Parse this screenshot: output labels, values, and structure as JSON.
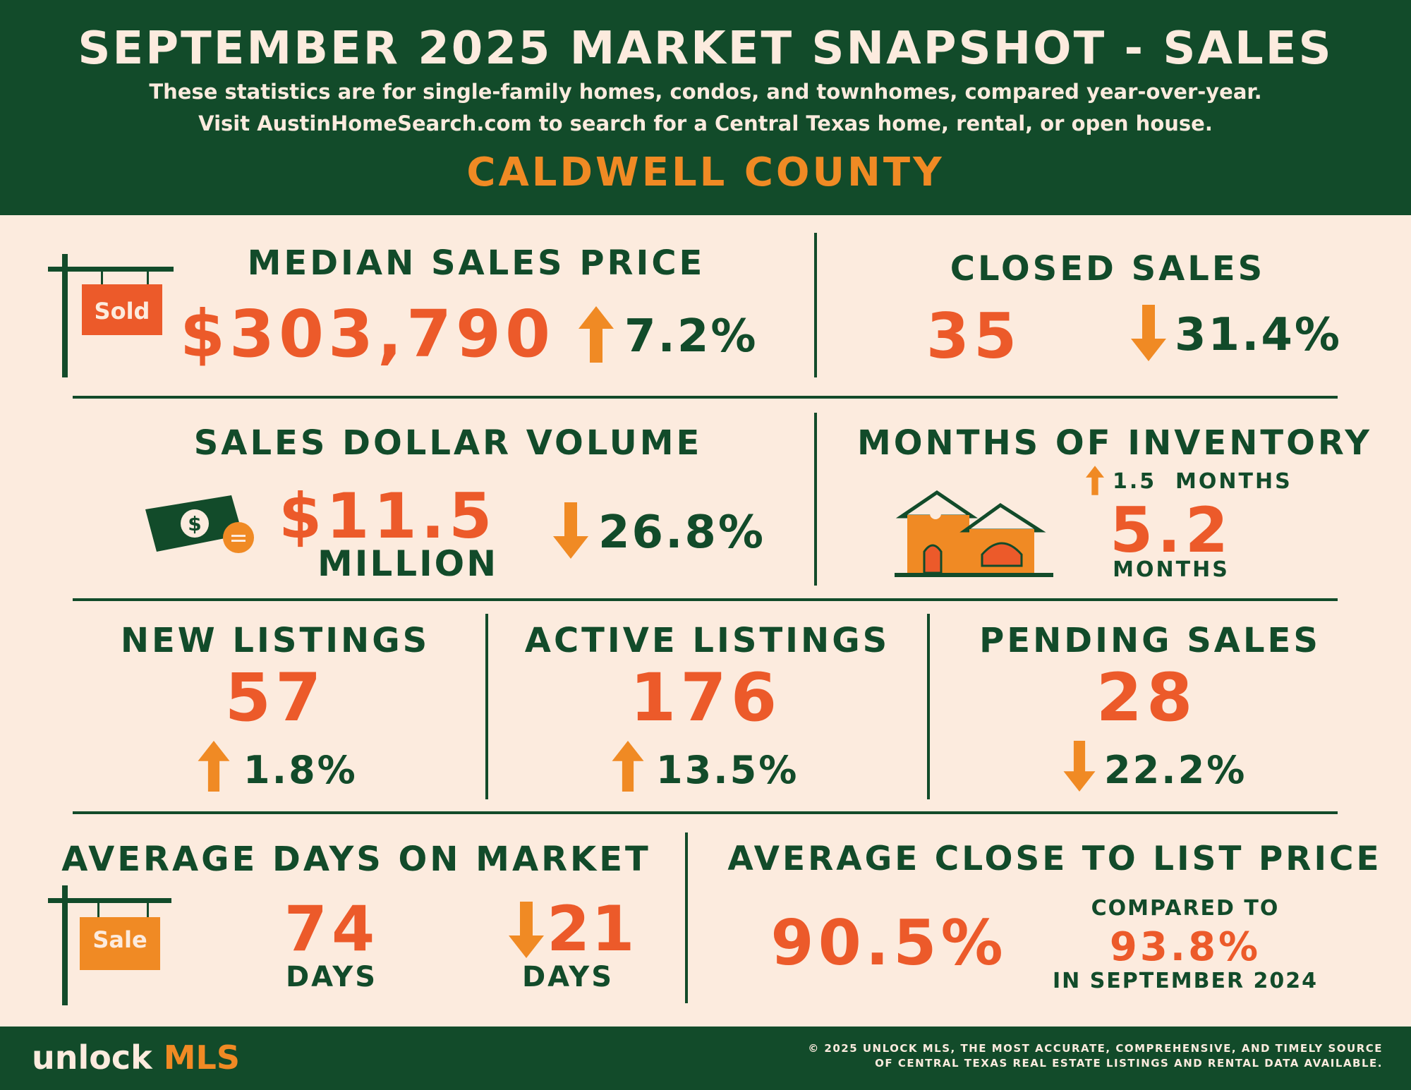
{
  "header": {
    "title": "SEPTEMBER 2025 MARKET SNAPSHOT - SALES",
    "line1": "These statistics are for single-family homes, condos, and townhomes, compared year-over-year.",
    "line2": "Visit AustinHomeSearch.com to search for a Central Texas home, rental, or open house.",
    "county": "CALDWELL COUNTY"
  },
  "median_price": {
    "label": "MEDIAN SALES PRICE",
    "sign_text": "Sold",
    "value": "$303,790",
    "change": "7.2%",
    "direction": "up"
  },
  "closed_sales": {
    "label": "CLOSED SALES",
    "value": "35",
    "change": "31.4%",
    "direction": "down"
  },
  "dollar_volume": {
    "label": "SALES DOLLAR VOLUME",
    "value": "$11.5",
    "unit": "MILLION",
    "change": "26.8%",
    "direction": "down"
  },
  "inventory": {
    "label": "MONTHS OF INVENTORY",
    "change": "1.5  MONTHS",
    "direction": "up",
    "value": "5.2",
    "unit": "MONTHS"
  },
  "new_listings": {
    "label": "NEW LISTINGS",
    "value": "57",
    "change": "1.8%",
    "direction": "up"
  },
  "active_listings": {
    "label": "ACTIVE LISTINGS",
    "value": "176",
    "change": "13.5%",
    "direction": "up"
  },
  "pending_sales": {
    "label": "PENDING SALES",
    "value": "28",
    "change": "22.2%",
    "direction": "down"
  },
  "days_on_market": {
    "label": "AVERAGE DAYS ON MARKET",
    "sign_text": "Sale",
    "value": "74",
    "unit": "DAYS",
    "change": "21",
    "change_unit": "DAYS",
    "direction": "down"
  },
  "close_to_list": {
    "label": "AVERAGE CLOSE TO LIST PRICE",
    "value": "90.5%",
    "compared_label": "COMPARED TO",
    "compared_value": "93.8%",
    "compared_period": "IN SEPTEMBER 2024"
  },
  "footer": {
    "logo_left": "unlock",
    "logo_right": "MLS",
    "copyright_line1": "© 2025 UNLOCK MLS, THE MOST ACCURATE, COMPREHENSIVE, AND TIMELY SOURCE",
    "copyright_line2": "OF CENTRAL TEXAS REAL ESTATE LISTINGS AND RENTAL DATA AVAILABLE."
  },
  "colors": {
    "green": "#124b2a",
    "cream": "#fcebde",
    "orange": "#f08a24",
    "red_orange": "#ec5a2a"
  },
  "icons": [
    "sold-sign-icon",
    "money-icon",
    "house-icon",
    "sale-sign-icon",
    "arrow-up-icon",
    "arrow-down-icon"
  ]
}
